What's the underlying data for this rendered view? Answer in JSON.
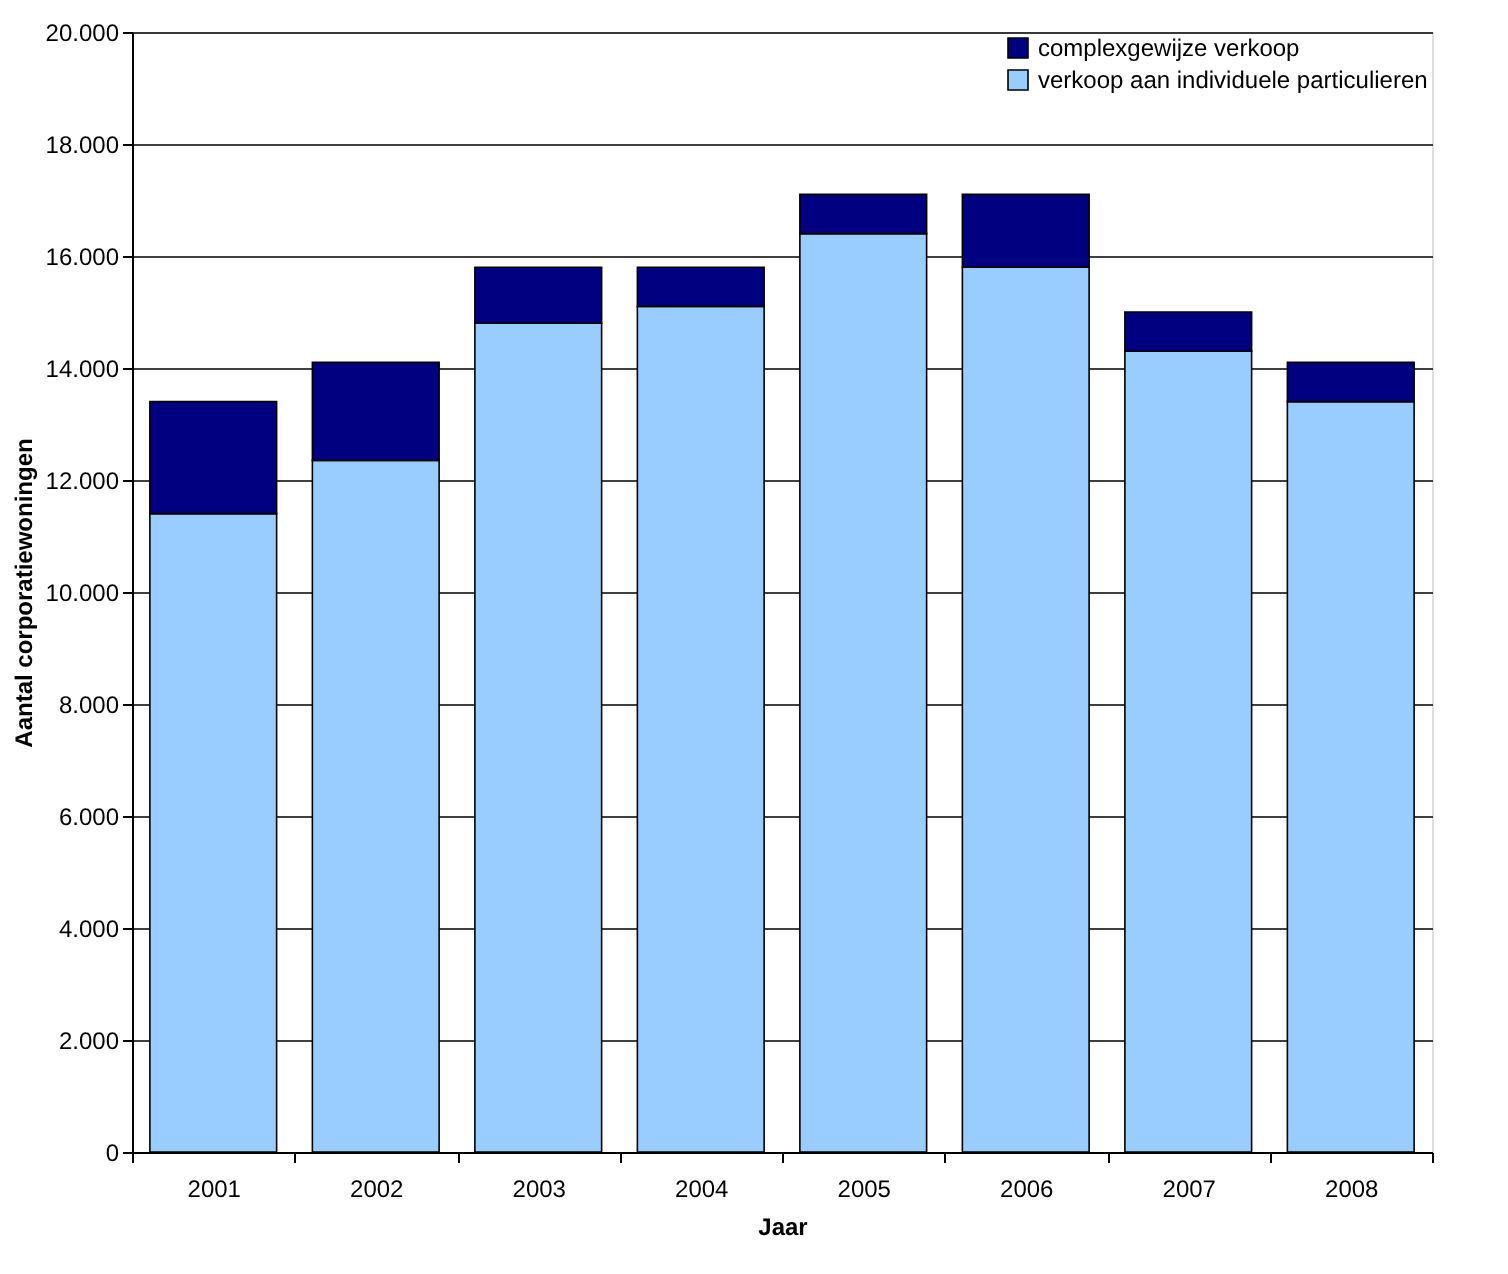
{
  "chart_data": {
    "type": "bar",
    "stacked": true,
    "xlabel": "Jaar",
    "ylabel": "Aantal corporatiewoningen",
    "categories": [
      "2001",
      "2002",
      "2003",
      "2004",
      "2005",
      "2006",
      "2007",
      "2008"
    ],
    "series": [
      {
        "name": "verkoop aan individuele particulieren",
        "color": "#99ccff",
        "values": [
          11400,
          12350,
          14800,
          15100,
          16400,
          15800,
          14300,
          13400
        ]
      },
      {
        "name": "complexgewijze verkoop",
        "color": "#000080",
        "values": [
          2000,
          1750,
          1000,
          700,
          700,
          1300,
          700,
          700
        ]
      }
    ],
    "ylim": [
      0,
      20000
    ],
    "yticks": [
      {
        "value": 0,
        "label": "0"
      },
      {
        "value": 2000,
        "label": "2.000"
      },
      {
        "value": 4000,
        "label": "4.000"
      },
      {
        "value": 6000,
        "label": "6.000"
      },
      {
        "value": 8000,
        "label": "8.000"
      },
      {
        "value": 10000,
        "label": "10.000"
      },
      {
        "value": 12000,
        "label": "12.000"
      },
      {
        "value": 14000,
        "label": "14.000"
      },
      {
        "value": 16000,
        "label": "16.000"
      },
      {
        "value": 18000,
        "label": "18.000"
      },
      {
        "value": 20000,
        "label": "20.000"
      }
    ],
    "grid": "y",
    "legend": "top right"
  }
}
